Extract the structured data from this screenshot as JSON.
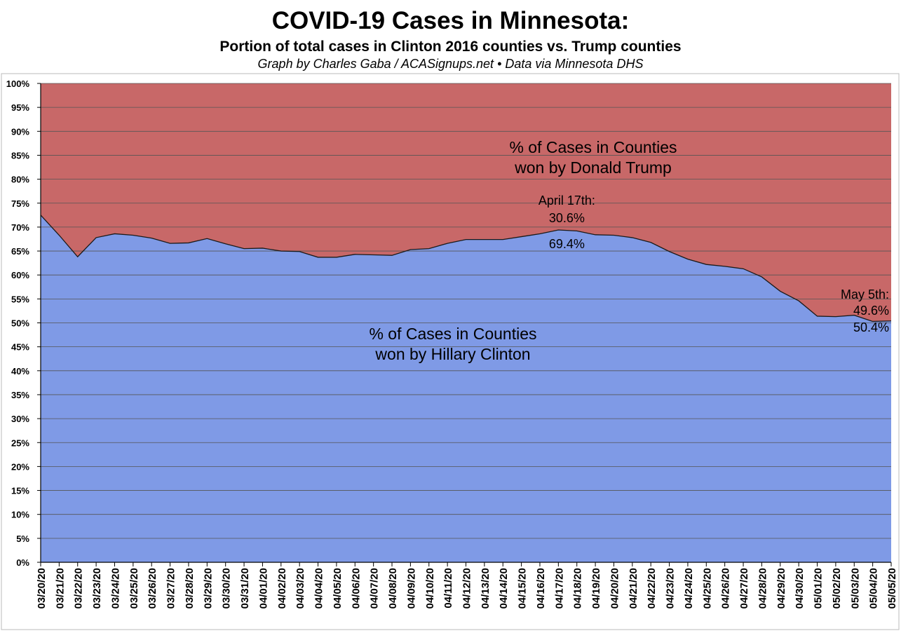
{
  "title": "COVID-19 Cases in Minnesota:",
  "subtitle": "Portion of total cases in Clinton 2016 counties vs. Trump counties",
  "credit": "Graph by Charles Gaba / ACASignups.net  •  Data via Minnesota DHS",
  "colors": {
    "clinton_area": "#7f9ae6",
    "trump_area": "#c86868",
    "gridline": "#555555",
    "border": "#000000"
  },
  "chart_data": {
    "type": "area",
    "stacked": true,
    "percent_stacked": true,
    "ylim": [
      0,
      100
    ],
    "ytick_labels": [
      "0%",
      "5%",
      "10%",
      "15%",
      "20%",
      "25%",
      "30%",
      "35%",
      "40%",
      "45%",
      "50%",
      "55%",
      "60%",
      "65%",
      "70%",
      "75%",
      "80%",
      "85%",
      "90%",
      "95%",
      "100%"
    ],
    "grid": true,
    "categories": [
      "03/20/20",
      "03/21/20",
      "03/22/20",
      "03/23/20",
      "03/24/20",
      "03/25/20",
      "03/26/20",
      "03/27/20",
      "03/28/20",
      "03/29/20",
      "03/30/20",
      "03/31/20",
      "04/01/20",
      "04/02/20",
      "04/03/20",
      "04/04/20",
      "04/05/20",
      "04/06/20",
      "04/07/20",
      "04/08/20",
      "04/09/20",
      "04/10/20",
      "04/11/20",
      "04/12/20",
      "04/13/20",
      "04/14/20",
      "04/15/20",
      "04/16/20",
      "04/17/20",
      "04/18/20",
      "04/19/20",
      "04/20/20",
      "04/21/20",
      "04/22/20",
      "04/23/20",
      "04/24/20",
      "04/25/20",
      "04/26/20",
      "04/27/20",
      "04/28/20",
      "04/29/20",
      "04/30/20",
      "05/01/20",
      "05/02/20",
      "05/03/20",
      "05/04/20",
      "05/05/20"
    ],
    "series": [
      {
        "name": "% of Cases in Counties won by Hillary Clinton",
        "values": [
          72.5,
          68.3,
          63.8,
          67.8,
          68.6,
          68.3,
          67.7,
          66.6,
          66.7,
          67.6,
          66.5,
          65.5,
          65.6,
          65.0,
          64.9,
          63.7,
          63.7,
          64.3,
          64.2,
          64.1,
          65.3,
          65.5,
          66.6,
          67.4,
          67.4,
          67.4,
          68.0,
          68.6,
          69.4,
          69.2,
          68.4,
          68.3,
          67.8,
          66.8,
          64.9,
          63.3,
          62.2,
          61.8,
          61.3,
          59.6,
          56.6,
          54.6,
          51.4,
          51.3,
          51.6,
          50.3,
          50.4
        ],
        "color": "#7f9ae6"
      },
      {
        "name": "% of Cases in Counties won by Donald Trump",
        "values": [
          27.5,
          31.7,
          36.2,
          32.2,
          31.4,
          31.7,
          32.3,
          33.4,
          33.3,
          32.4,
          33.5,
          34.5,
          34.4,
          35.0,
          35.1,
          36.3,
          36.3,
          35.7,
          35.8,
          35.9,
          34.7,
          34.5,
          33.4,
          32.6,
          32.6,
          32.6,
          32.0,
          31.4,
          30.6,
          30.8,
          31.6,
          31.7,
          32.2,
          33.2,
          35.1,
          36.7,
          37.8,
          38.2,
          38.7,
          40.4,
          43.4,
          45.4,
          48.6,
          48.7,
          48.4,
          49.7,
          49.6
        ],
        "color": "#c86868"
      }
    ],
    "area_labels": {
      "trump": [
        "% of Cases in Counties",
        "won by Donald Trump"
      ],
      "clinton": [
        "% of Cases in Counties",
        "won by Hillary Clinton"
      ]
    },
    "annotations": [
      {
        "text": "April 17th:",
        "category": "04/17/20"
      },
      {
        "text": "30.6%",
        "category": "04/17/20"
      },
      {
        "text": "69.4%",
        "category": "04/17/20"
      },
      {
        "text": "May 5th:",
        "category": "05/05/20"
      },
      {
        "text": "49.6%",
        "category": "05/05/20"
      },
      {
        "text": "50.4%",
        "category": "05/05/20"
      }
    ]
  }
}
